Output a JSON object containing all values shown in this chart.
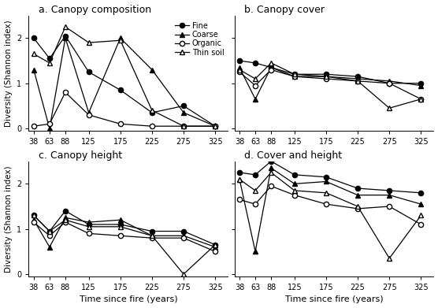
{
  "x": [
    38,
    63,
    88,
    125,
    175,
    225,
    275,
    325
  ],
  "panel_a": {
    "title": "a. Canopy composition",
    "Fine": [
      2.0,
      1.55,
      2.05,
      1.25,
      0.85,
      0.35,
      0.5,
      0.05
    ],
    "Coarse": [
      1.3,
      0.0,
      2.0,
      0.35,
      2.0,
      1.3,
      0.35,
      0.05
    ],
    "Organic": [
      0.05,
      0.1,
      0.8,
      0.3,
      0.1,
      0.05,
      0.05,
      0.05
    ],
    "ThinSoil": [
      1.65,
      1.45,
      2.25,
      1.9,
      1.95,
      0.4,
      0.05,
      0.05
    ]
  },
  "panel_b": {
    "title": "b. Canopy cover",
    "Fine": [
      1.5,
      1.45,
      1.35,
      1.2,
      1.2,
      1.15,
      1.0,
      1.0
    ],
    "Coarse": [
      1.35,
      0.65,
      1.35,
      1.15,
      1.15,
      1.1,
      1.05,
      0.95
    ],
    "Organic": [
      1.25,
      0.95,
      1.3,
      1.15,
      1.1,
      1.05,
      1.0,
      0.65
    ],
    "ThinSoil": [
      1.3,
      1.1,
      1.45,
      1.2,
      1.15,
      1.05,
      0.45,
      0.65
    ]
  },
  "panel_c": {
    "title": "c. Canopy height",
    "Fine": [
      1.3,
      0.95,
      1.4,
      1.1,
      1.1,
      0.95,
      0.95,
      0.65
    ],
    "Coarse": [
      1.2,
      0.6,
      1.25,
      1.15,
      1.2,
      0.85,
      0.85,
      0.6
    ],
    "Organic": [
      1.15,
      0.85,
      1.15,
      0.9,
      0.85,
      0.8,
      0.8,
      0.5
    ],
    "ThinSoil": [
      1.3,
      0.95,
      1.2,
      1.05,
      1.05,
      0.85,
      0.0,
      0.65
    ]
  },
  "panel_d": {
    "title": "d. Cover and height",
    "Fine": [
      2.25,
      2.2,
      2.5,
      2.2,
      2.15,
      1.9,
      1.85,
      1.8
    ],
    "Coarse": [
      2.1,
      0.5,
      2.35,
      2.0,
      2.05,
      1.75,
      1.75,
      1.55
    ],
    "Organic": [
      1.65,
      1.55,
      1.95,
      1.75,
      1.55,
      1.45,
      1.5,
      1.1
    ],
    "ThinSoil": [
      2.1,
      1.85,
      2.25,
      1.85,
      1.8,
      1.5,
      0.35,
      1.3
    ]
  },
  "ylim_a": [
    -0.05,
    2.5
  ],
  "ylim_b": [
    -0.05,
    2.5
  ],
  "ylim_c": [
    -0.05,
    2.5
  ],
  "ylim_d": [
    -0.05,
    2.5
  ],
  "yticks_a": [
    0,
    1,
    2
  ],
  "yticks_b": [
    0,
    1,
    2
  ],
  "yticks_c": [
    0,
    1,
    2
  ],
  "yticks_d": [
    0,
    1,
    2
  ],
  "series_styles": {
    "Fine": {
      "marker": "o",
      "filled": true,
      "linestyle": "-"
    },
    "Coarse": {
      "marker": "^",
      "filled": true,
      "linestyle": "-"
    },
    "Organic": {
      "marker": "o",
      "filled": false,
      "linestyle": "-"
    },
    "ThinSoil": {
      "marker": "^",
      "filled": false,
      "linestyle": "-"
    }
  },
  "legend_labels": [
    "Fine",
    "Coarse",
    "Organic",
    "Thin soil"
  ],
  "color": "#000000",
  "bg_color": "#ffffff",
  "ylabel": "Diversity (Shannon index)",
  "xlabel": "Time since fire (years)"
}
